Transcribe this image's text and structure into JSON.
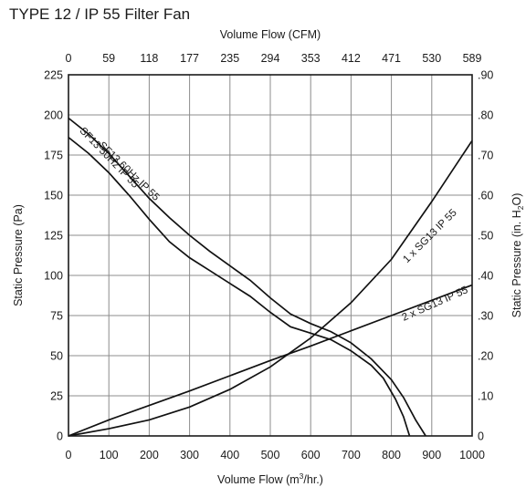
{
  "chart_data": {
    "type": "line",
    "title": "TYPE 12 / IP 55 Filter Fan",
    "xlabel_bottom": {
      "text": "Volume Flow (m",
      "sup": "3",
      "tail": "/hr.)"
    },
    "xlabel_top": "Volume Flow (CFM)",
    "ylabel_left": "Static Pressure (Pa)",
    "ylabel_right": {
      "text": "Static Pressure (in. H",
      "sub": "2",
      "tail": "O)"
    },
    "xlim": [
      0,
      1000
    ],
    "ylim": [
      0,
      225
    ],
    "grid": true,
    "x_ticks": [
      0,
      100,
      200,
      300,
      400,
      500,
      600,
      700,
      800,
      900,
      1000
    ],
    "x_tick_labels": [
      "0",
      "100",
      "200",
      "300",
      "400",
      "500",
      "600",
      "700",
      "800",
      "900",
      "1000"
    ],
    "y_ticks": [
      0,
      25,
      50,
      75,
      100,
      125,
      150,
      175,
      200,
      225
    ],
    "y_tick_labels": [
      "0",
      "25",
      "50",
      "75",
      "100",
      "125",
      "150",
      "175",
      "200",
      "225"
    ],
    "top_tick_labels": [
      "0",
      "59",
      "118",
      "177",
      "235",
      "294",
      "353",
      "412",
      "471",
      "530",
      "589"
    ],
    "right_tick_labels": [
      "0",
      ".10",
      ".20",
      ".30",
      ".40",
      ".50",
      ".60",
      ".70",
      ".80",
      ".90"
    ],
    "series": [
      {
        "name": "SF13 60Hz IP 55",
        "x": [
          0,
          50,
          100,
          150,
          200,
          250,
          300,
          350,
          400,
          450,
          500,
          550,
          600,
          650,
          700,
          750,
          800,
          830,
          860,
          885
        ],
        "y": [
          198,
          188,
          176,
          162,
          148,
          136,
          125,
          115,
          106,
          97,
          86,
          76,
          70,
          65,
          58,
          48,
          35,
          24,
          10,
          0
        ]
      },
      {
        "name": "SF13 50Hz IP 55",
        "x": [
          0,
          50,
          100,
          150,
          200,
          250,
          300,
          350,
          400,
          450,
          500,
          550,
          600,
          650,
          700,
          750,
          780,
          810,
          830,
          845
        ],
        "y": [
          186,
          176,
          164,
          150,
          135,
          121,
          111,
          103,
          95,
          87,
          77,
          68,
          64,
          60,
          53,
          44,
          36,
          23,
          12,
          0
        ]
      },
      {
        "name": "1 x SG13 IP 55",
        "x": [
          0,
          100,
          200,
          300,
          400,
          500,
          600,
          700,
          800,
          900,
          1000
        ],
        "y": [
          0,
          4.5,
          10,
          18,
          29,
          43,
          61,
          83,
          110,
          146,
          184
        ]
      },
      {
        "name": "2 x SG13 IP 55",
        "x": [
          0,
          100,
          200,
          300,
          400,
          500,
          600,
          700,
          800,
          900,
          1000
        ],
        "y": [
          0,
          10,
          19,
          28,
          37.5,
          47,
          56,
          65.5,
          75,
          84.5,
          94
        ]
      }
    ]
  }
}
